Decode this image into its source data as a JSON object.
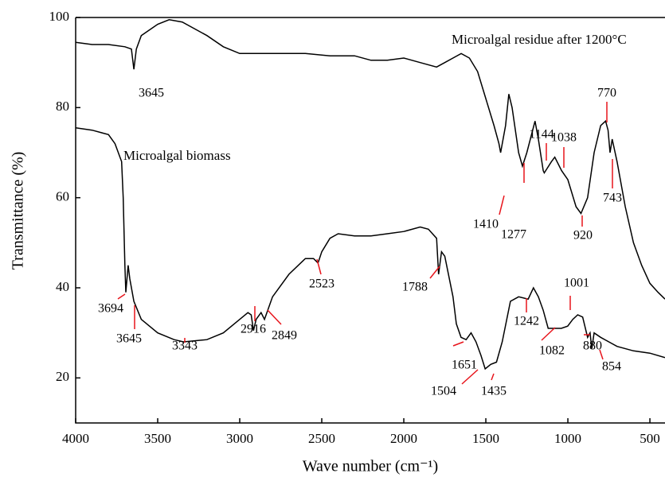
{
  "chart_data": {
    "type": "line",
    "x_label": "Wave number (cm⁻¹)",
    "y_label": "Transmittance (%)",
    "xlim": [
      4000,
      408
    ],
    "xticks": [
      4000,
      3500,
      3000,
      2500,
      2000,
      1500,
      1000,
      500
    ],
    "ylim": [
      10,
      100
    ],
    "yticks": [
      20,
      40,
      60,
      80,
      100
    ],
    "annotation_color": "#e8141b",
    "series": [
      {
        "name": "Microalgal residue after 1200°C",
        "color": "#000000",
        "x": [
          4000,
          3900,
          3800,
          3700,
          3660,
          3645,
          3630,
          3600,
          3500,
          3430,
          3350,
          3200,
          3100,
          3000,
          2800,
          2600,
          2450,
          2300,
          2200,
          2100,
          2000,
          1900,
          1800,
          1750,
          1700,
          1650,
          1600,
          1550,
          1500,
          1450,
          1420,
          1410,
          1380,
          1360,
          1340,
          1300,
          1277,
          1250,
          1200,
          1180,
          1150,
          1144,
          1100,
          1080,
          1038,
          1000,
          950,
          920,
          880,
          840,
          800,
          770,
          755,
          743,
          730,
          700,
          650,
          600,
          550,
          500,
          450,
          408
        ],
        "values": [
          94.5,
          94,
          94,
          93.5,
          93,
          88.5,
          93,
          96,
          98.5,
          99.5,
          99,
          96,
          93.5,
          92,
          92,
          92,
          91.5,
          91.5,
          90.5,
          90.5,
          91,
          90,
          89,
          90,
          91,
          92,
          91,
          88,
          82,
          76,
          72,
          70,
          76,
          83,
          80,
          70,
          67,
          70,
          77,
          73,
          66,
          65.5,
          68,
          69,
          66,
          64,
          58,
          56.5,
          60,
          70,
          76,
          77,
          75,
          70,
          73,
          68,
          58,
          50,
          45,
          41,
          39,
          37.5
        ],
        "peaks": [
          3645,
          1410,
          1277,
          1144,
          1038,
          920,
          770,
          743
        ]
      },
      {
        "name": "Microalgal biomass",
        "color": "#000000",
        "x": [
          4000,
          3900,
          3800,
          3760,
          3720,
          3710,
          3700,
          3694,
          3680,
          3670,
          3645,
          3600,
          3500,
          3400,
          3343,
          3200,
          3100,
          3000,
          2950,
          2930,
          2916,
          2900,
          2870,
          2849,
          2800,
          2700,
          2600,
          2550,
          2523,
          2500,
          2450,
          2400,
          2300,
          2200,
          2100,
          2000,
          1900,
          1850,
          1800,
          1788,
          1770,
          1750,
          1700,
          1680,
          1651,
          1620,
          1590,
          1560,
          1530,
          1504,
          1470,
          1435,
          1400,
          1350,
          1300,
          1242,
          1210,
          1180,
          1150,
          1120,
          1082,
          1040,
          1001,
          970,
          940,
          910,
          880,
          865,
          854,
          840,
          800,
          750,
          700,
          600,
          500,
          408
        ],
        "values": [
          75.5,
          75,
          74,
          72,
          68,
          60,
          45,
          39,
          45,
          42,
          37,
          33,
          30,
          28.5,
          28,
          28.5,
          30,
          33,
          34.5,
          34,
          30.5,
          33,
          34.5,
          33,
          38,
          43,
          46.5,
          46.5,
          45.5,
          48,
          51,
          52,
          51.5,
          51.5,
          52,
          52.5,
          53.5,
          53,
          51,
          43,
          48,
          47,
          38,
          32,
          29,
          28.5,
          30,
          28,
          25,
          22,
          23,
          23.5,
          28,
          37,
          38,
          37.5,
          40,
          38,
          35,
          31,
          31,
          31,
          31.5,
          33,
          34,
          33.5,
          29,
          30,
          26.5,
          30,
          29,
          28,
          27,
          26,
          25.5,
          24.5
        ],
        "peaks": [
          3694,
          3645,
          3343,
          2916,
          2849,
          2523,
          1788,
          1651,
          1504,
          1435,
          1242,
          1082,
          1001,
          880,
          854
        ]
      }
    ]
  }
}
